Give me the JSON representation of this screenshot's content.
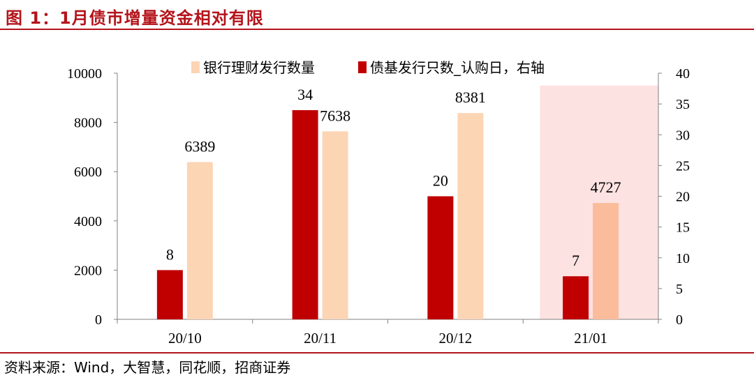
{
  "figure": {
    "title": "图 1：1月债市增量资金相对有限",
    "source": "资料来源：Wind，大智慧，同花顺，招商证券"
  },
  "colors": {
    "accent": "#b4141b",
    "bank_wm": "#fcd5b5",
    "bank_wm_highlight": "#fbbc9b",
    "fund": "#c00000",
    "highlight_band": "#fde2e2"
  },
  "chart_data": {
    "type": "bar",
    "categories": [
      "20/10",
      "20/11",
      "20/12",
      "21/01"
    ],
    "highlight_category": "21/01",
    "series": [
      {
        "name": "债基发行只数_认购日，右轴",
        "axis": "right",
        "values": [
          8,
          34,
          20,
          7
        ]
      },
      {
        "name": "银行理财发行数量",
        "axis": "left",
        "values": [
          6389,
          7638,
          8381,
          4727
        ]
      }
    ],
    "left_axis": {
      "ylim": [
        0,
        10000
      ],
      "ticks": [
        "0",
        "2000",
        "4000",
        "6000",
        "8000",
        "10000"
      ]
    },
    "right_axis": {
      "ylim": [
        0,
        40
      ],
      "ticks": [
        "0",
        "5",
        "10",
        "15",
        "20",
        "25",
        "30",
        "35",
        "40"
      ]
    },
    "legend": [
      "银行理财发行数量",
      "债基发行只数_认购日，右轴"
    ],
    "legend_position": "top"
  }
}
